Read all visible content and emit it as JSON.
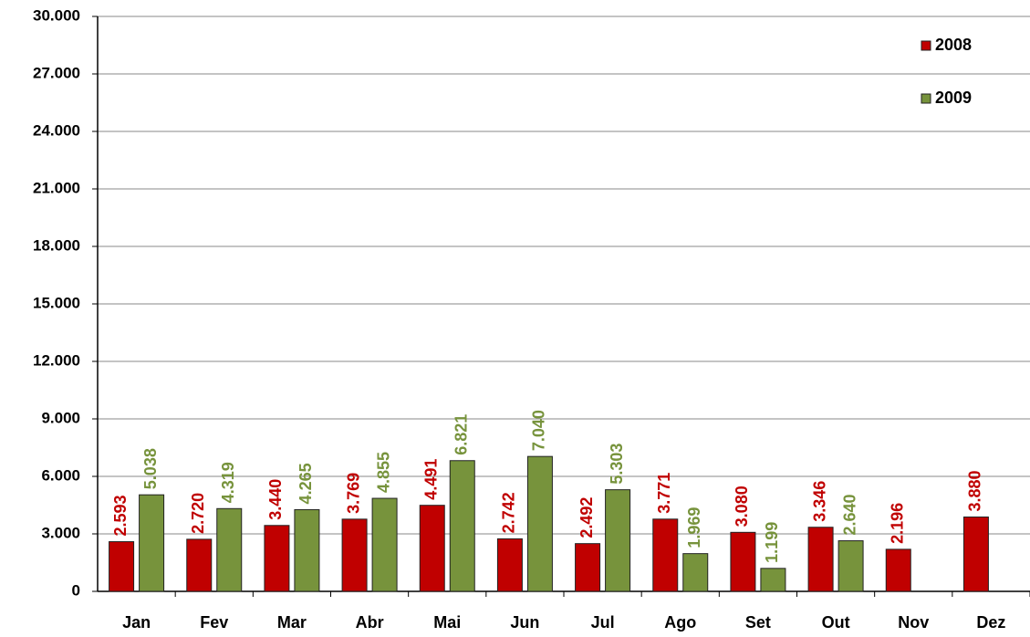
{
  "chart_data": {
    "type": "bar",
    "categories": [
      "Jan",
      "Fev",
      "Mar",
      "Abr",
      "Mai",
      "Jun",
      "Jul",
      "Ago",
      "Set",
      "Out",
      "Nov",
      "Dez"
    ],
    "series": [
      {
        "name": "2008",
        "color": "#c00000",
        "values": [
          2593,
          2720,
          3440,
          3769,
          4491,
          2742,
          2492,
          3771,
          3080,
          3346,
          2196,
          3880
        ],
        "value_labels": [
          "2.593",
          "2.720",
          "3.440",
          "3.769",
          "4.491",
          "2.742",
          "2.492",
          "3.771",
          "3.080",
          "3.346",
          "2.196",
          "3.880"
        ]
      },
      {
        "name": "2009",
        "color": "#77933c",
        "values": [
          5038,
          4319,
          4265,
          4855,
          6821,
          7040,
          5303,
          1969,
          1199,
          2640,
          null,
          null
        ],
        "value_labels": [
          "5.038",
          "4.319",
          "4.265",
          "4.855",
          "6.821",
          "7.040",
          "5.303",
          "1.969",
          "1.199",
          "2.640",
          null,
          null
        ]
      }
    ],
    "ylim": [
      0,
      30000
    ],
    "yticks": [
      0,
      {
        "value": 3000,
        "label": "3.000"
      },
      {
        "value": 6000,
        "label": "6.000"
      },
      {
        "value": 9000,
        "label": "9.000"
      },
      {
        "value": 12000,
        "label": "12.000"
      },
      {
        "value": 15000,
        "label": "15.000"
      },
      {
        "value": 18000,
        "label": "18.000"
      },
      {
        "value": 21000,
        "label": "21.000"
      },
      {
        "value": 24000,
        "label": "24.000"
      },
      {
        "value": 27000,
        "label": "27.000"
      },
      {
        "value": 30000,
        "label": "30.000"
      }
    ],
    "grid": true,
    "legend": "top-right"
  }
}
